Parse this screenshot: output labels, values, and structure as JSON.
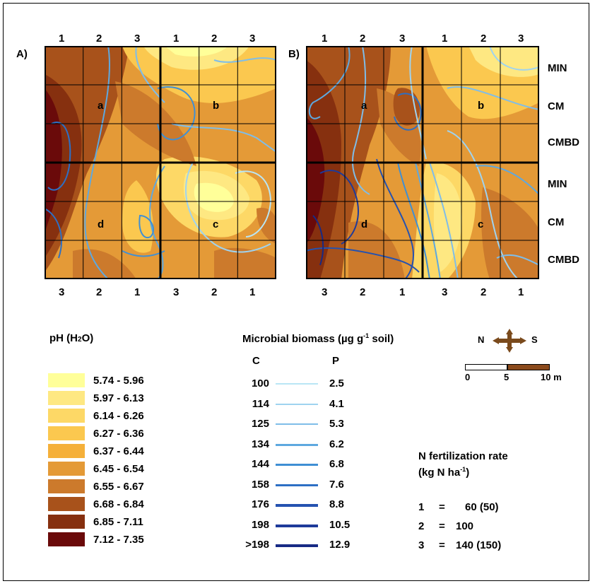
{
  "panels": {
    "a": {
      "label": "A)",
      "top_numbers": [
        "1",
        "2",
        "3",
        "1",
        "2",
        "3"
      ],
      "bottom_numbers": [
        "3",
        "2",
        "1",
        "3",
        "2",
        "1"
      ],
      "plot_labels": {
        "a": "a",
        "b": "b",
        "c": "c",
        "d": "d"
      }
    },
    "b": {
      "label": "B)",
      "top_numbers": [
        "1",
        "2",
        "3",
        "1",
        "2",
        "3"
      ],
      "bottom_numbers": [
        "3",
        "2",
        "1",
        "3",
        "2",
        "1"
      ],
      "plot_labels": {
        "a": "a",
        "b": "b",
        "c": "c",
        "d": "d"
      }
    }
  },
  "row_labels": [
    "MIN",
    "CM",
    "CMBD",
    "MIN",
    "CM",
    "CMBD"
  ],
  "ph_legend": {
    "title_main": "pH (H",
    "title_sub": "2",
    "title_end": "O)",
    "items": [
      {
        "range": "5.74 - 5.96",
        "color": "#ffff99"
      },
      {
        "range": "5.97 - 6.13",
        "color": "#fee882"
      },
      {
        "range": "6.14 - 6.26",
        "color": "#fdd866"
      },
      {
        "range": "6.27 - 6.36",
        "color": "#fbc84f"
      },
      {
        "range": "6.37 - 6.44",
        "color": "#f5b03a"
      },
      {
        "range": "6.45 - 6.54",
        "color": "#e49a37"
      },
      {
        "range": "6.55 - 6.67",
        "color": "#cc7a2c"
      },
      {
        "range": "6.68 - 6.84",
        "color": "#a8521b"
      },
      {
        "range": "6.85 - 7.11",
        "color": "#86300f"
      },
      {
        "range": "7.12 - 7.35",
        "color": "#6a0a0a"
      }
    ]
  },
  "biomass_legend": {
    "title_main": "Microbial biomass (µg g",
    "title_sup": "-1",
    "title_end": " soil)",
    "c_header": "C",
    "p_header": "P",
    "items": [
      {
        "c": "100",
        "p": "2.5",
        "color": "#b9e6f5"
      },
      {
        "c": "114",
        "p": "4.1",
        "color": "#9fd3ef"
      },
      {
        "c": "125",
        "p": "5.3",
        "color": "#7fbde8"
      },
      {
        "c": "134",
        "p": "6.2",
        "color": "#5ea8df"
      },
      {
        "c": "144",
        "p": "6.8",
        "color": "#3f8fd4"
      },
      {
        "c": "158",
        "p": "7.6",
        "color": "#2d6fc4"
      },
      {
        "c": "176",
        "p": "8.8",
        "color": "#2552b0"
      },
      {
        "c": "198",
        "p": "10.5",
        "color": "#1e3a9a"
      },
      {
        "c": ">198",
        "p": "12.9",
        "color": "#172a85"
      }
    ]
  },
  "compass": {
    "n": "N",
    "s": "S"
  },
  "scalebar": {
    "t0": "0",
    "t1": "5",
    "t2": "10 m",
    "color": "#8b4a1c"
  },
  "fert_legend": {
    "title1": "N fertilization rate",
    "title2_main": "(kg N ha",
    "title2_sup": "-1",
    "title2_end": ")",
    "items": [
      {
        "num": "1",
        "eq": "=",
        "val": "60 (50)"
      },
      {
        "num": "2",
        "eq": "=",
        "val": "100"
      },
      {
        "num": "3",
        "eq": "=",
        "val": "140 (150)"
      }
    ]
  }
}
